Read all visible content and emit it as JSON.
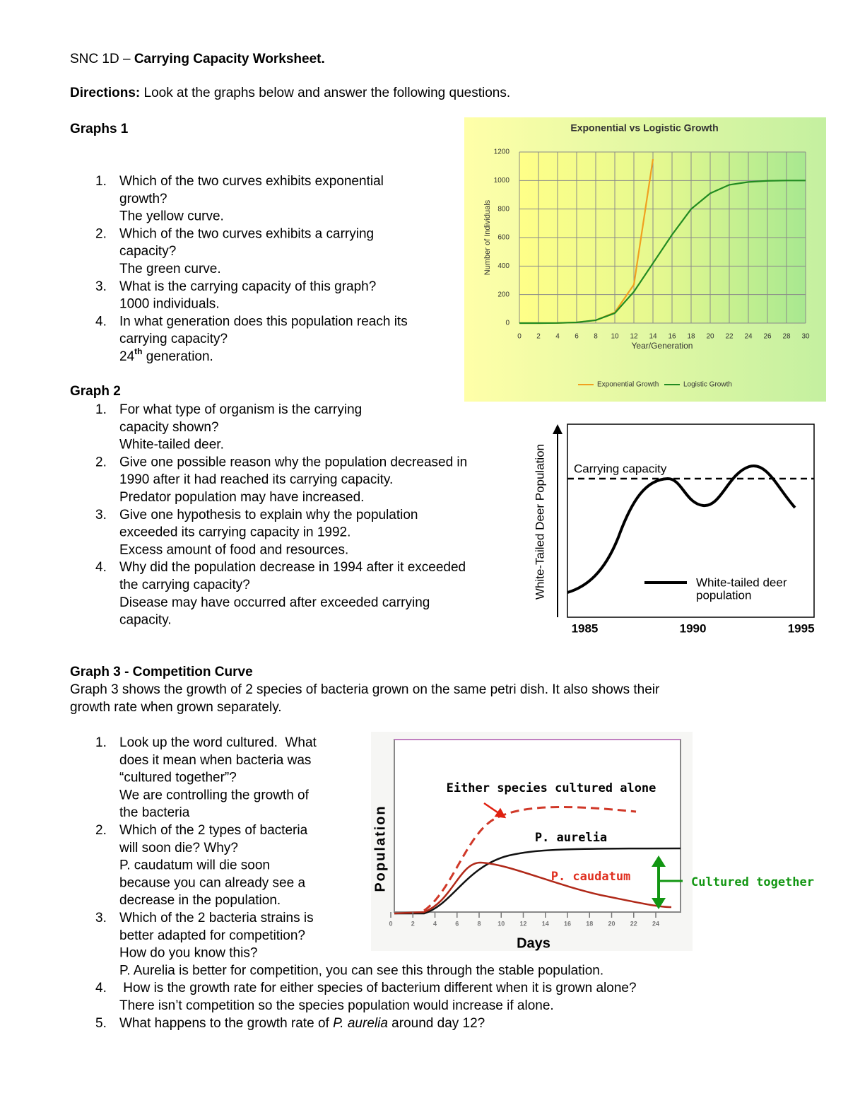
{
  "header": {
    "course": "SNC 1D – ",
    "title": "Carrying Capacity Worksheet."
  },
  "directions": {
    "label": "Directions:",
    "text": " Look at the graphs below and answer the following questions."
  },
  "sections": [
    {
      "heading": "Graphs 1",
      "questions": [
        {
          "number": "1.",
          "lines": [
            "Which of the two curves exhibits exponential",
            "growth?",
            "The yellow curve."
          ]
        },
        {
          "number": "2.",
          "lines": [
            "Which of the two curves exhibits a carrying",
            "capacity?",
            "The green curve."
          ]
        },
        {
          "number": "3.",
          "lines": [
            "What is the carrying capacity of this graph?",
            "1000 individuals."
          ]
        },
        {
          "number": "4.",
          "lines": [
            "In what generation does this population reach its",
            "carrying capacity?",
            [
              "24",
              {
                "sup": "th"
              },
              " generation."
            ]
          ]
        }
      ]
    },
    {
      "heading": "Graph 2",
      "questions": [
        {
          "number": "1.",
          "lines": [
            "For what type of organism is the carrying",
            "capacity shown?",
            "White-tailed deer."
          ]
        },
        {
          "number": "2.",
          "lines": [
            "Give one possible reason why the population decreased in",
            "1990 after it had reached its carrying capacity.",
            "Predator population may have increased."
          ]
        },
        {
          "number": "3.",
          "lines": [
            "Give one hypothesis to explain why the population",
            "exceeded its carrying capacity in 1992.",
            "Excess amount of food and resources."
          ]
        },
        {
          "number": "4.",
          "lines": [
            "Why did the population decrease in 1994 after it exceeded",
            "the carrying capacity?",
            "Disease may have occurred after exceeded carrying",
            "capacity."
          ]
        }
      ]
    },
    {
      "heading": "Graph 3 - Competition Curve",
      "description": [
        "Graph 3 shows the growth of 2 species of bacteria grown on the same petri dish. It also shows their",
        "growth rate when grown separately."
      ],
      "questions": [
        {
          "number": "1.",
          "lines": [
            "Look up the word cultured.  What",
            "does it mean when bacteria was",
            "“cultured together”?",
            "We are controlling the growth of",
            "the bacteria"
          ]
        },
        {
          "number": "2.",
          "lines": [
            "Which of the 2 types of bacteria",
            "will soon die? Why?",
            "P. caudatum will die soon",
            "because you can already see a",
            "decrease in the population."
          ]
        },
        {
          "number": "3.",
          "lines": [
            "Which of the 2 bacteria strains is",
            "better adapted for competition?",
            "How do you know this?",
            "P. Aurelia is better for competition, you can see this through the stable population."
          ]
        },
        {
          "number": "4.",
          "lines": [
            " How is the growth rate for either species of bacterium different when it is grown alone?",
            "There isn’t competition so the species population would increase if alone."
          ]
        },
        {
          "number": "5.",
          "lines": [
            [
              "What happens to the growth rate of ",
              {
                "italic": "P. aurelia"
              },
              " around day 12?"
            ]
          ]
        }
      ]
    }
  ],
  "graph1": {
    "type": "line",
    "title": "Exponential vs Logistic Growth",
    "x_label": "Year/Generation",
    "y_label": "Number of Individuals",
    "x": [
      0,
      2,
      4,
      6,
      8,
      10,
      12,
      14,
      16,
      18,
      20,
      22,
      24,
      26,
      28,
      30
    ],
    "series": [
      {
        "name": "Exponential Growth",
        "color": "#f0a020",
        "values": [
          0,
          0,
          1,
          5,
          20,
          75,
          270,
          1150,
          null,
          null,
          null,
          null,
          null,
          null,
          null,
          null
        ]
      },
      {
        "name": "Logistic Growth",
        "color": "#228b22",
        "values": [
          0,
          0,
          1,
          5,
          20,
          70,
          220,
          420,
          620,
          800,
          910,
          970,
          990,
          998,
          1000,
          1000
        ]
      }
    ],
    "xlim": [
      0,
      30
    ],
    "ylim": [
      0,
      1200
    ],
    "xticks": [
      0,
      2,
      4,
      6,
      8,
      10,
      12,
      14,
      16,
      18,
      20,
      22,
      24,
      26,
      28,
      30
    ],
    "yticks": [
      0,
      200,
      400,
      600,
      800,
      1000,
      1200
    ],
    "grid": true
  },
  "graph2": {
    "y_label": "White-Tailed Deer Population",
    "annotation": "Carrying capacity",
    "legend_lines": [
      "White-tailed deer",
      "population"
    ],
    "xlim": [
      1984.2,
      1995.6
    ],
    "xticks": [
      1985,
      1990,
      1995
    ]
  },
  "graph3": {
    "y_label": "Population",
    "x_label": "Days",
    "annotation": "Either species cultured alone",
    "species_a": "P. aurelia",
    "species_b": "P. caudatum",
    "together": "Cultured together",
    "xlim": [
      0,
      26.4
    ],
    "xticks": [
      0,
      2,
      4,
      6,
      8,
      10,
      12,
      14,
      16,
      18,
      20,
      22,
      24
    ]
  }
}
